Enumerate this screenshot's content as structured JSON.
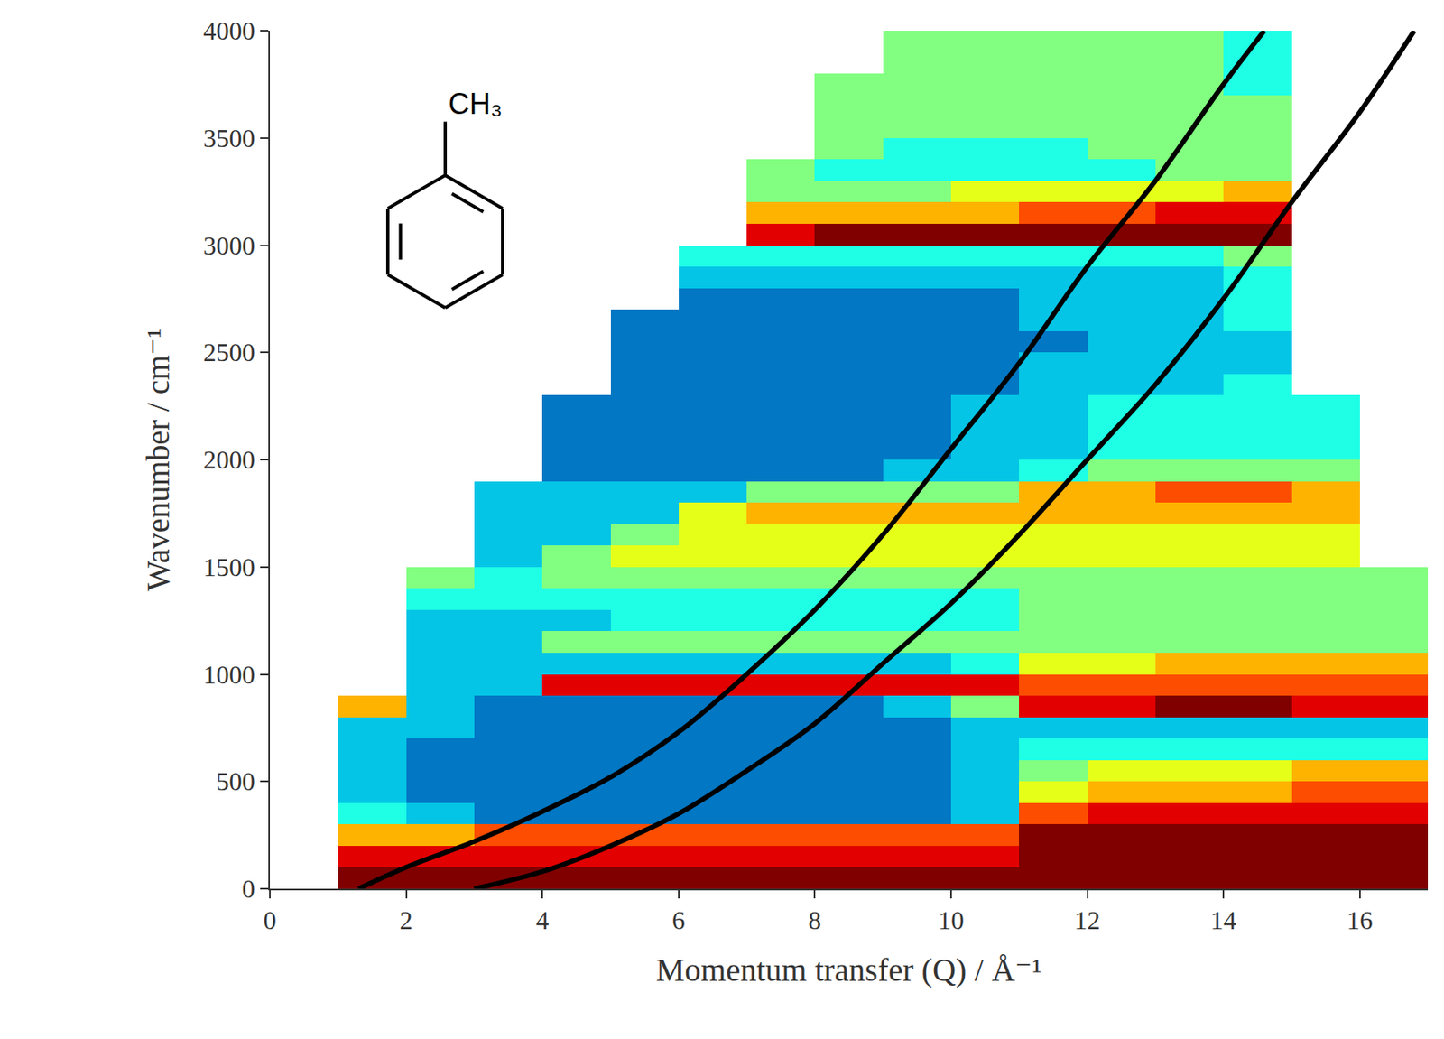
{
  "chart_data": {
    "type": "heatmap",
    "x_label": "Momentum transfer (Q) / Å⁻¹",
    "y_label": "Wavenumber / cm⁻¹",
    "xlim": [
      0,
      17
    ],
    "ylim": [
      0,
      4000
    ],
    "xticks": [
      0,
      2,
      4,
      6,
      8,
      10,
      12,
      14,
      16
    ],
    "yticks": [
      0,
      500,
      1000,
      1500,
      2000,
      2500,
      3000,
      3500,
      4000
    ],
    "grid": false,
    "tick_labels": true,
    "annotations": [
      {
        "text": "CH₃"
      }
    ],
    "x": [
      1,
      2,
      3,
      4,
      5,
      6,
      7,
      8,
      9,
      10,
      11,
      12,
      13,
      14,
      15,
      16,
      17
    ],
    "y": [
      0,
      100,
      200,
      300,
      400,
      500,
      600,
      700,
      800,
      900,
      1000,
      1100,
      1200,
      1300,
      1400,
      1500,
      1600,
      1700,
      1800,
      1900,
      2000,
      2100,
      2200,
      2300,
      2400,
      2500,
      2600,
      2700,
      2800,
      2900,
      3000,
      3100,
      3200,
      3300,
      3400,
      3500,
      3600,
      3700,
      3800,
      3900,
      4000
    ],
    "zlim": [
      0,
      10
    ],
    "z": [
      [
        10,
        10,
        10,
        10,
        10,
        10,
        10,
        10,
        10,
        10,
        10,
        10,
        10,
        10,
        10,
        10
      ],
      [
        9,
        9,
        9,
        9,
        9,
        9,
        9,
        9,
        9,
        9,
        10,
        10,
        10,
        10,
        10,
        10
      ],
      [
        7,
        7,
        8,
        8,
        8,
        8,
        8,
        8,
        8,
        8,
        10,
        10,
        10,
        10,
        10,
        10
      ],
      [
        4,
        3,
        2,
        2,
        2,
        2,
        2,
        2,
        2,
        3,
        8,
        9,
        9,
        9,
        9,
        9
      ],
      [
        3,
        2,
        2,
        2,
        2,
        2,
        2,
        2,
        2,
        3,
        6,
        7,
        7,
        7,
        8,
        8
      ],
      [
        3,
        2,
        2,
        2,
        2,
        2,
        2,
        2,
        2,
        3,
        5,
        6,
        6,
        6,
        7,
        7
      ],
      [
        3,
        2,
        2,
        2,
        2,
        2,
        2,
        2,
        2,
        3,
        4,
        4,
        4,
        4,
        4,
        4
      ],
      [
        3,
        3,
        2,
        2,
        2,
        2,
        2,
        2,
        2,
        3,
        3,
        3,
        3,
        3,
        3,
        3
      ],
      [
        7,
        3,
        2,
        2,
        2,
        2,
        2,
        2,
        3,
        5,
        9,
        9,
        10,
        10,
        9,
        9
      ],
      [
        null,
        3,
        3,
        9,
        9,
        9,
        9,
        9,
        9,
        9,
        8,
        8,
        8,
        8,
        8,
        8
      ],
      [
        null,
        3,
        3,
        3,
        3,
        3,
        3,
        3,
        3,
        4,
        6,
        6,
        7,
        7,
        7,
        7
      ],
      [
        null,
        3,
        3,
        5,
        5,
        5,
        5,
        5,
        5,
        5,
        5,
        5,
        5,
        5,
        5,
        5
      ],
      [
        null,
        3,
        3,
        3,
        4,
        4,
        4,
        4,
        4,
        4,
        5,
        5,
        5,
        5,
        5,
        5
      ],
      [
        null,
        4,
        4,
        4,
        4,
        4,
        4,
        4,
        4,
        4,
        5,
        5,
        5,
        5,
        5,
        5
      ],
      [
        null,
        5,
        4,
        5,
        5,
        5,
        5,
        5,
        5,
        5,
        5,
        5,
        5,
        5,
        5,
        5
      ],
      [
        null,
        null,
        3,
        5,
        6,
        6,
        6,
        6,
        6,
        6,
        6,
        6,
        6,
        6,
        6,
        null
      ],
      [
        null,
        null,
        3,
        3,
        5,
        6,
        6,
        6,
        6,
        6,
        6,
        6,
        6,
        6,
        6,
        null
      ],
      [
        null,
        null,
        3,
        3,
        3,
        6,
        7,
        7,
        7,
        7,
        7,
        7,
        7,
        7,
        7,
        null
      ],
      [
        null,
        null,
        3,
        3,
        3,
        3,
        5,
        5,
        5,
        5,
        7,
        7,
        8,
        8,
        7,
        null
      ],
      [
        null,
        null,
        null,
        2,
        2,
        2,
        2,
        2,
        3,
        3,
        4,
        5,
        5,
        5,
        5,
        null
      ],
      [
        null,
        null,
        null,
        2,
        2,
        2,
        2,
        2,
        2,
        3,
        3,
        4,
        4,
        4,
        4,
        null
      ],
      [
        null,
        null,
        null,
        2,
        2,
        2,
        2,
        2,
        2,
        3,
        3,
        4,
        4,
        4,
        4,
        null
      ],
      [
        null,
        null,
        null,
        2,
        2,
        2,
        2,
        2,
        2,
        3,
        3,
        4,
        4,
        4,
        4,
        null
      ],
      [
        null,
        null,
        null,
        null,
        2,
        2,
        2,
        2,
        2,
        2,
        3,
        3,
        3,
        4,
        null,
        null
      ],
      [
        null,
        null,
        null,
        null,
        2,
        2,
        2,
        2,
        2,
        2,
        3,
        3,
        3,
        3,
        null,
        null
      ],
      [
        null,
        null,
        null,
        null,
        2,
        2,
        2,
        2,
        2,
        2,
        2,
        3,
        3,
        3,
        null,
        null
      ],
      [
        null,
        null,
        null,
        null,
        2,
        2,
        2,
        2,
        2,
        2,
        3,
        3,
        3,
        4,
        null,
        null
      ],
      [
        null,
        null,
        null,
        null,
        null,
        2,
        2,
        2,
        2,
        2,
        3,
        3,
        3,
        4,
        null,
        null
      ],
      [
        null,
        null,
        null,
        null,
        null,
        3,
        3,
        3,
        3,
        3,
        3,
        3,
        3,
        4,
        null,
        null
      ],
      [
        null,
        null,
        null,
        null,
        null,
        4,
        4,
        4,
        4,
        4,
        4,
        4,
        4,
        5,
        null,
        null
      ],
      [
        null,
        null,
        null,
        null,
        null,
        null,
        9,
        10,
        10,
        10,
        10,
        10,
        10,
        10,
        null,
        null
      ],
      [
        null,
        null,
        null,
        null,
        null,
        null,
        7,
        7,
        7,
        7,
        8,
        8,
        9,
        9,
        null,
        null
      ],
      [
        null,
        null,
        null,
        null,
        null,
        null,
        5,
        5,
        5,
        6,
        6,
        6,
        6,
        7,
        null,
        null
      ],
      [
        null,
        null,
        null,
        null,
        null,
        null,
        5,
        4,
        4,
        4,
        4,
        4,
        5,
        5,
        null,
        null
      ],
      [
        null,
        null,
        null,
        null,
        null,
        null,
        null,
        5,
        4,
        4,
        4,
        5,
        5,
        5,
        null,
        null
      ],
      [
        null,
        null,
        null,
        null,
        null,
        null,
        null,
        5,
        5,
        5,
        5,
        5,
        5,
        5,
        null,
        null
      ],
      [
        null,
        null,
        null,
        null,
        null,
        null,
        null,
        5,
        5,
        5,
        5,
        5,
        5,
        5,
        null,
        null
      ],
      [
        null,
        null,
        null,
        null,
        null,
        null,
        null,
        5,
        5,
        5,
        5,
        5,
        5,
        4,
        null,
        null
      ],
      [
        null,
        null,
        null,
        null,
        null,
        null,
        null,
        null,
        5,
        5,
        5,
        5,
        5,
        4,
        null,
        null
      ],
      [
        null,
        null,
        null,
        null,
        null,
        null,
        null,
        null,
        5,
        5,
        5,
        5,
        5,
        4,
        null,
        null
      ]
    ],
    "series": [
      {
        "type": "line",
        "color": "#000000",
        "x": [
          1.3,
          2,
          3,
          4,
          5,
          6,
          7,
          8,
          9,
          10,
          11,
          12,
          13,
          14,
          14.6
        ],
        "values": [
          0,
          100,
          220,
          360,
          520,
          730,
          1000,
          1300,
          1650,
          2050,
          2450,
          2900,
          3300,
          3750,
          4000
        ]
      },
      {
        "type": "line",
        "color": "#000000",
        "x": [
          3,
          4,
          5,
          6,
          7,
          8,
          9,
          10,
          11,
          12,
          13,
          14,
          15,
          16,
          16.8
        ],
        "values": [
          0,
          80,
          200,
          350,
          550,
          770,
          1050,
          1330,
          1650,
          2000,
          2350,
          2750,
          3200,
          3620,
          4000
        ]
      }
    ]
  }
}
